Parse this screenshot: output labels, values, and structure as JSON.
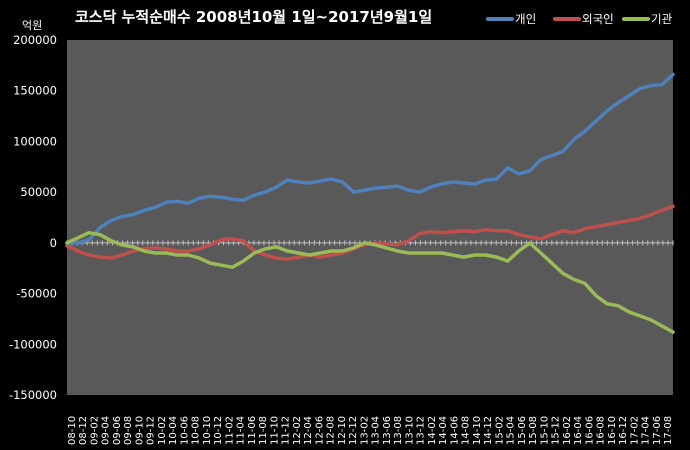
{
  "chart_data": {
    "type": "line",
    "title": "코스닥 누적순매수 2008년10월 1일~2017년9월1일",
    "unit_label": "억원",
    "ylim": [
      -150000,
      200000
    ],
    "yticks": [
      200000,
      150000,
      100000,
      50000,
      0,
      -50000,
      -100000,
      -150000
    ],
    "ytick_labels": [
      "200000",
      "150000",
      "100000",
      "50000",
      "0",
      "-50000",
      "-100000",
      "-150000"
    ],
    "xtick_labels": [
      "08-10",
      "08-12",
      "09-02",
      "09-04",
      "09-06",
      "09-08",
      "09-10",
      "09-12",
      "10-02",
      "10-04",
      "10-06",
      "10-08",
      "10-10",
      "10-12",
      "11-02",
      "11-04",
      "11-06",
      "11-08",
      "11-10",
      "11-12",
      "12-02",
      "12-04",
      "12-06",
      "12-08",
      "12-10",
      "12-12",
      "13-02",
      "13-04",
      "13-06",
      "13-08",
      "13-10",
      "13-12",
      "14-02",
      "14-04",
      "14-06",
      "14-08",
      "14-10",
      "14-12",
      "15-02",
      "15-04",
      "15-06",
      "15-08",
      "15-10",
      "15-12",
      "16-02",
      "16-04",
      "16-06",
      "16-08",
      "16-10",
      "16-12",
      "17-02",
      "17-04",
      "17-06",
      "17-08"
    ],
    "grid": false,
    "legend_position": "top-right",
    "series": [
      {
        "name": "개인",
        "color": "#4f81bd",
        "values": [
          0,
          0,
          3000,
          15000,
          22000,
          26000,
          28000,
          32000,
          35000,
          40000,
          41000,
          39000,
          44000,
          46000,
          45000,
          43000,
          42000,
          47000,
          50000,
          55000,
          62000,
          60000,
          59000,
          61000,
          63000,
          60000,
          50000,
          52000,
          54000,
          55000,
          56000,
          52000,
          50000,
          55000,
          58000,
          60000,
          59000,
          58000,
          62000,
          63000,
          74000,
          68000,
          71000,
          82000,
          86000,
          90000,
          102000,
          110000,
          120000,
          130000,
          138000,
          145000,
          152000,
          155000,
          156000,
          166000
        ]
      },
      {
        "name": "외국인",
        "color": "#c0504d",
        "values": [
          -3000,
          -8000,
          -12000,
          -14000,
          -15000,
          -12000,
          -8000,
          -6000,
          -5000,
          -6000,
          -8000,
          -8000,
          -6000,
          -2000,
          3000,
          4000,
          2000,
          -8000,
          -12000,
          -15000,
          -16000,
          -14000,
          -12000,
          -14000,
          -12000,
          -10000,
          -6000,
          -2000,
          0,
          -1000,
          -2000,
          2000,
          9000,
          11000,
          10000,
          11000,
          12000,
          11000,
          13000,
          12000,
          12000,
          8000,
          6000,
          4000,
          8000,
          12000,
          10000,
          14000,
          16000,
          18000,
          20000,
          22000,
          24000,
          28000,
          32000,
          36000
        ]
      },
      {
        "name": "기관",
        "color": "#9bbb59",
        "values": [
          0,
          5000,
          10000,
          8000,
          2000,
          -2000,
          -4000,
          -8000,
          -10000,
          -10000,
          -12000,
          -12000,
          -15000,
          -20000,
          -22000,
          -24000,
          -18000,
          -10000,
          -6000,
          -4000,
          -8000,
          -10000,
          -12000,
          -10000,
          -8000,
          -8000,
          -5000,
          0,
          -2000,
          -5000,
          -8000,
          -10000,
          -10000,
          -10000,
          -10000,
          -12000,
          -14000,
          -12000,
          -12000,
          -14000,
          -18000,
          -8000,
          0,
          -10000,
          -20000,
          -30000,
          -36000,
          -40000,
          -52000,
          -60000,
          -62000,
          -68000,
          -72000,
          -76000,
          -82000,
          -88000
        ]
      }
    ]
  }
}
